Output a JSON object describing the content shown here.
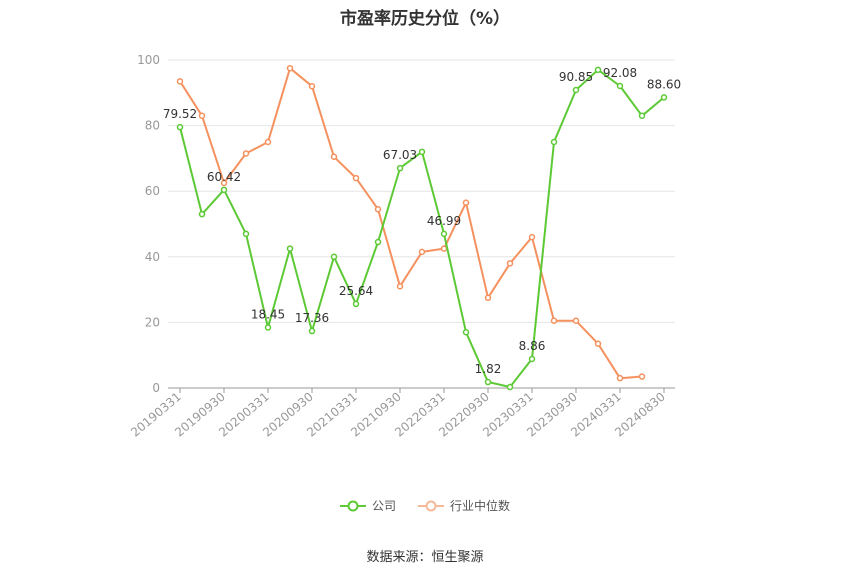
{
  "chart_data": {
    "type": "line",
    "title": "市盈率历史分位（%）",
    "ylim": [
      0,
      100
    ],
    "yticks": [
      0,
      20,
      40,
      60,
      80,
      100
    ],
    "x": [
      "20190331",
      "20190630",
      "20190930",
      "20191231",
      "20200331",
      "20200630",
      "20200930",
      "20201231",
      "20210331",
      "20210630",
      "20210930",
      "20211231",
      "20220331",
      "20220630",
      "20220930",
      "20221231",
      "20230331",
      "20230630",
      "20230930",
      "20231231",
      "20240331",
      "20240630",
      "20240830"
    ],
    "xtick_labels": [
      "20190331",
      "20190930",
      "20200331",
      "20200930",
      "20210331",
      "20210930",
      "20220331",
      "20220930",
      "20230331",
      "20230930",
      "20240331",
      "20240830"
    ],
    "series": [
      {
        "name": "公司",
        "color": "#5cc935",
        "values": [
          79.52,
          53,
          60.42,
          47,
          18.45,
          42.5,
          17.36,
          40,
          25.64,
          44.5,
          67.03,
          72,
          46.99,
          17,
          1.82,
          0.3,
          8.86,
          75,
          90.85,
          97,
          92.08,
          83,
          88.6
        ],
        "labels": {
          "0": "79.52",
          "2": "60.42",
          "4": "18.45",
          "6": "17.36",
          "8": "25.64",
          "10": "67.03",
          "12": "46.99",
          "14": "1.82",
          "16": "8.86",
          "18": "90.85",
          "20": "92.08",
          "22": "88.60"
        }
      },
      {
        "name": "行业中位数",
        "color": "#f5915e",
        "values": [
          93.5,
          83,
          62.5,
          71.5,
          75,
          97.5,
          92,
          70.5,
          64,
          54.5,
          31,
          41.5,
          42.5,
          56.5,
          27.5,
          38,
          46,
          20.5,
          20.5,
          13.5,
          3,
          3.5,
          null
        ]
      }
    ],
    "grid": true
  },
  "legend": {
    "company": "公司",
    "industry": "行业中位数"
  },
  "source": "数据来源：恒生聚源"
}
